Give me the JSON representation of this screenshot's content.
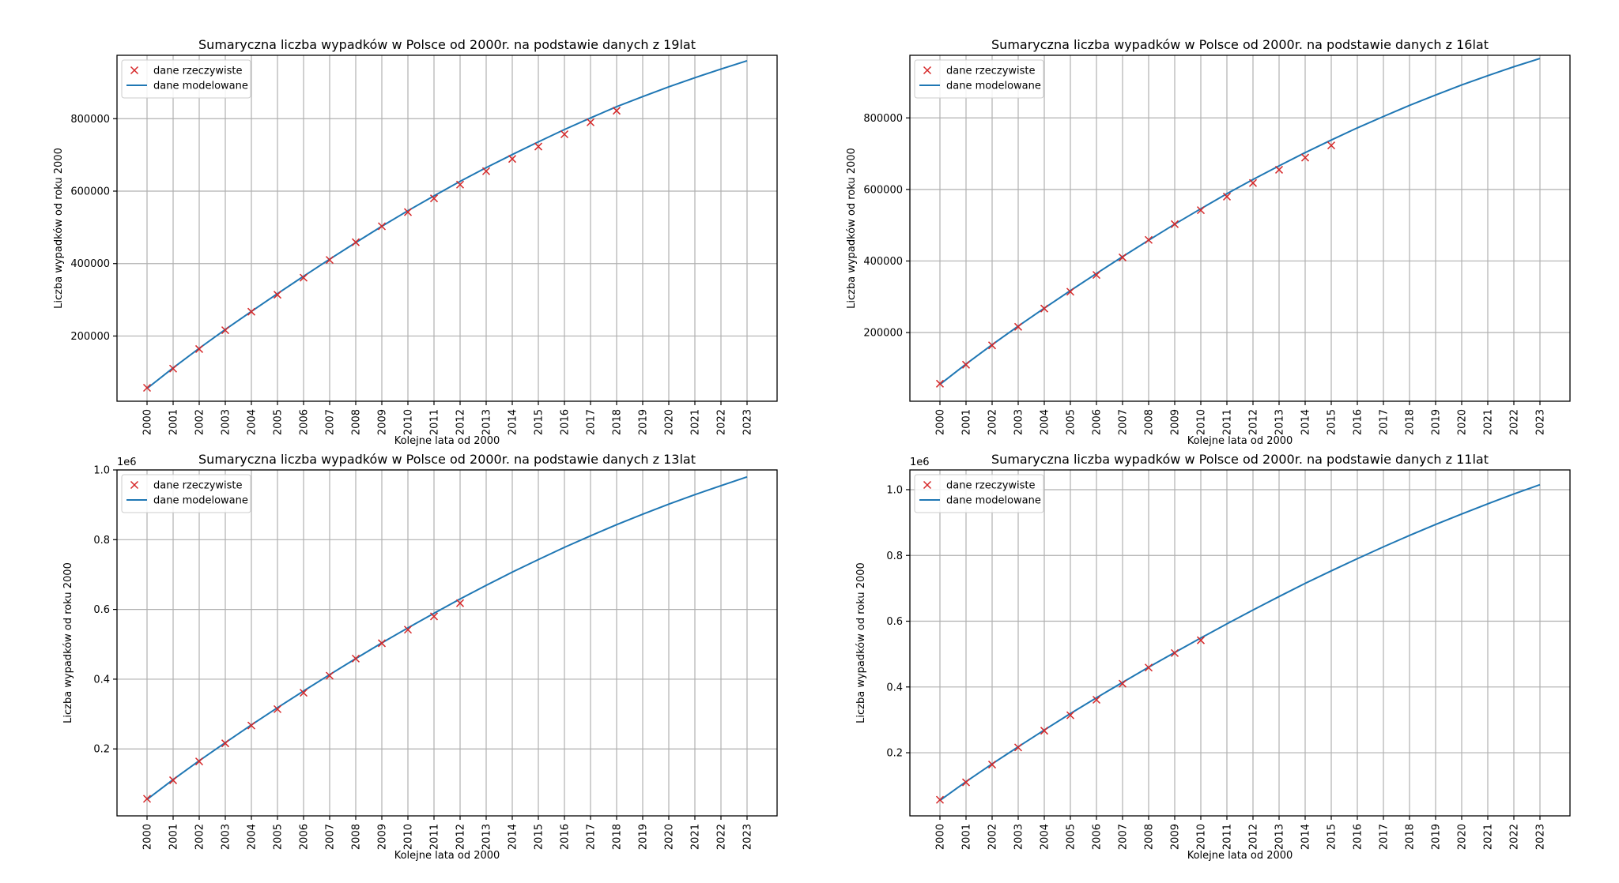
{
  "chart_data": [
    {
      "type": "line",
      "title": "Sumaryczna liczba wypadków w Polsce od 2000r. na podstawie danych z 19lat",
      "xlabel": "Kolejne lata od 2000",
      "ylabel": "Liczba wypadków od roku 2000",
      "ylim": [
        20000,
        975000
      ],
      "yticks": [
        200000,
        400000,
        600000,
        800000
      ],
      "ytick_labels": [
        "200000",
        "400000",
        "600000",
        "800000"
      ],
      "offset_text": "",
      "x": [
        "2000",
        "2001",
        "2002",
        "2003",
        "2004",
        "2005",
        "2006",
        "2007",
        "2008",
        "2009",
        "2010",
        "2011",
        "2012",
        "2013",
        "2014",
        "2015",
        "2016",
        "2017",
        "2018",
        "2019",
        "2020",
        "2021",
        "2022",
        "2023"
      ],
      "grid": true,
      "legend": "top-left",
      "series": [
        {
          "name": "dane rzeczywiste",
          "kind": "scatter",
          "marker": "x",
          "color": "#d62728",
          "values": [
            57000,
            110000,
            164000,
            216000,
            267000,
            314000,
            361000,
            410000,
            459000,
            503000,
            542000,
            580000,
            618000,
            655000,
            689000,
            723000,
            757000,
            790000,
            822000
          ]
        },
        {
          "name": "dane modelowane",
          "kind": "line",
          "color": "#1f77b4",
          "values": [
            55000,
            112000,
            166000,
            218000,
            268000,
            317000,
            365000,
            412000,
            458000,
            503000,
            546000,
            587000,
            627000,
            665000,
            701000,
            736000,
            770000,
            802000,
            833000,
            861000,
            888000,
            913000,
            937000,
            960000
          ]
        }
      ]
    },
    {
      "type": "line",
      "title": "Sumaryczna liczba wypadków w Polsce od 2000r. na podstawie danych z 16lat",
      "xlabel": "Kolejne lata od 2000",
      "ylabel": "Liczba wypadków od roku 2000",
      "ylim": [
        8000,
        975000
      ],
      "yticks": [
        200000,
        400000,
        600000,
        800000
      ],
      "ytick_labels": [
        "200000",
        "400000",
        "600000",
        "800000"
      ],
      "offset_text": "",
      "x": [
        "2000",
        "2001",
        "2002",
        "2003",
        "2004",
        "2005",
        "2006",
        "2007",
        "2008",
        "2009",
        "2010",
        "2011",
        "2012",
        "2013",
        "2014",
        "2015",
        "2016",
        "2017",
        "2018",
        "2019",
        "2020",
        "2021",
        "2022",
        "2023"
      ],
      "grid": true,
      "legend": "top-left",
      "series": [
        {
          "name": "dane rzeczywiste",
          "kind": "scatter",
          "marker": "x",
          "color": "#d62728",
          "values": [
            57000,
            110000,
            164000,
            216000,
            267000,
            314000,
            361000,
            410000,
            459000,
            503000,
            542000,
            580000,
            618000,
            655000,
            689000,
            723000
          ]
        },
        {
          "name": "dane modelowane",
          "kind": "line",
          "color": "#1f77b4",
          "values": [
            55000,
            112000,
            166000,
            218000,
            268000,
            317000,
            365000,
            412000,
            458000,
            503000,
            546000,
            588000,
            628000,
            666000,
            703000,
            738000,
            772000,
            804000,
            835000,
            864000,
            892000,
            918000,
            943000,
            966000
          ]
        }
      ]
    },
    {
      "type": "line",
      "title": "Sumaryczna liczba wypadków w Polsce od 2000r. na podstawie danych z 13lat",
      "xlabel": "Kolejne lata od 2000",
      "ylabel": "Liczba wypadków od roku 2000",
      "ylim": [
        8000,
        1000000
      ],
      "yticks": [
        200000,
        400000,
        600000,
        800000,
        1000000
      ],
      "ytick_labels": [
        "0.2",
        "0.4",
        "0.6",
        "0.8",
        "1.0"
      ],
      "offset_text": "1e6",
      "x": [
        "2000",
        "2001",
        "2002",
        "2003",
        "2004",
        "2005",
        "2006",
        "2007",
        "2008",
        "2009",
        "2010",
        "2011",
        "2012",
        "2013",
        "2014",
        "2015",
        "2016",
        "2017",
        "2018",
        "2019",
        "2020",
        "2021",
        "2022",
        "2023"
      ],
      "grid": true,
      "legend": "top-left",
      "series": [
        {
          "name": "dane rzeczywiste",
          "kind": "scatter",
          "marker": "x",
          "color": "#d62728",
          "values": [
            57000,
            110000,
            164000,
            216000,
            267000,
            314000,
            361000,
            410000,
            459000,
            503000,
            542000,
            580000,
            618000
          ]
        },
        {
          "name": "dane modelowane",
          "kind": "line",
          "color": "#1f77b4",
          "values": [
            55000,
            112000,
            166000,
            218000,
            269000,
            318000,
            366000,
            413000,
            459000,
            504000,
            547000,
            589000,
            630000,
            669000,
            707000,
            743000,
            778000,
            811000,
            843000,
            873000,
            902000,
            929000,
            955000,
            980000
          ]
        }
      ]
    },
    {
      "type": "line",
      "title": "Sumaryczna liczba wypadków w Polsce od 2000r. na podstawie danych z 11lat",
      "xlabel": "Kolejne lata od 2000",
      "ylabel": "Liczba wypadków od roku 2000",
      "ylim": [
        8000,
        1060000
      ],
      "yticks": [
        200000,
        400000,
        600000,
        800000,
        1000000
      ],
      "ytick_labels": [
        "0.2",
        "0.4",
        "0.6",
        "0.8",
        "1.0"
      ],
      "offset_text": "1e6",
      "x": [
        "2000",
        "2001",
        "2002",
        "2003",
        "2004",
        "2005",
        "2006",
        "2007",
        "2008",
        "2009",
        "2010",
        "2011",
        "2012",
        "2013",
        "2014",
        "2015",
        "2016",
        "2017",
        "2018",
        "2019",
        "2020",
        "2021",
        "2022",
        "2023"
      ],
      "grid": true,
      "legend": "top-left",
      "series": [
        {
          "name": "dane rzeczywiste",
          "kind": "scatter",
          "marker": "x",
          "color": "#d62728",
          "values": [
            57000,
            110000,
            164000,
            216000,
            267000,
            314000,
            361000,
            410000,
            459000,
            503000,
            542000
          ]
        },
        {
          "name": "dane modelowane",
          "kind": "line",
          "color": "#1f77b4",
          "values": [
            55000,
            112000,
            166000,
            218000,
            269000,
            319000,
            367000,
            414000,
            460000,
            505000,
            549000,
            592000,
            634000,
            675000,
            715000,
            753000,
            790000,
            826000,
            861000,
            894000,
            926000,
            957000,
            987000,
            1015000
          ]
        }
      ]
    }
  ]
}
